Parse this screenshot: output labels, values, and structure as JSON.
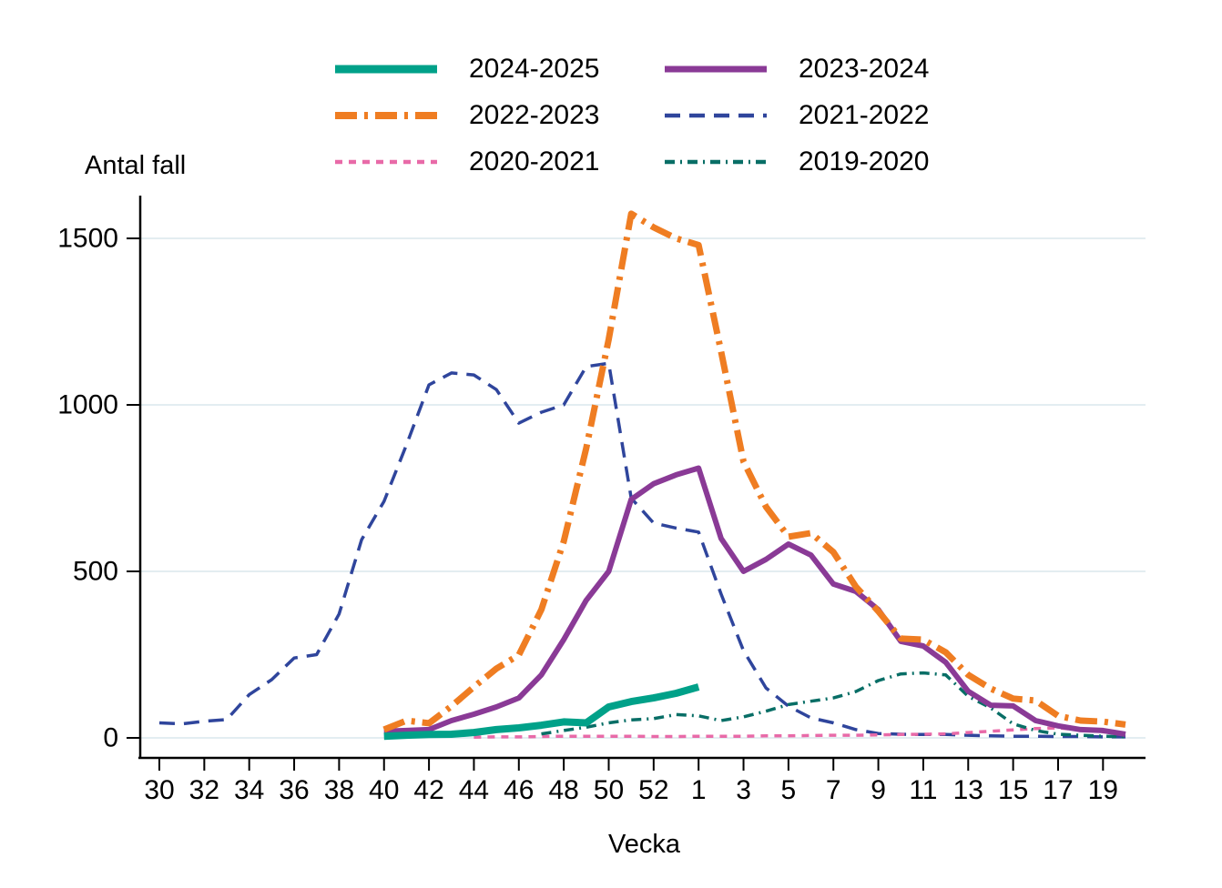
{
  "figure": {
    "y_axis_title": "Antal fall",
    "x_axis_title": "Vecka"
  },
  "legend": {
    "items": [
      {
        "label": "2024-2025"
      },
      {
        "label": "2023-2024"
      },
      {
        "label": "2022-2023"
      },
      {
        "label": "2021-2022"
      },
      {
        "label": "2020-2021"
      },
      {
        "label": "2019-2020"
      }
    ]
  },
  "chart_data": {
    "type": "line",
    "title": "",
    "xlabel": "Vecka",
    "ylabel": "Antal fall",
    "grid": "horizontal-only",
    "gridline_color": "#e3edf1",
    "axis_color": "#000000",
    "ylim": [
      0,
      1600
    ],
    "yticks": [
      0,
      500,
      1000,
      1500
    ],
    "x_positions": [
      "30",
      "31",
      "32",
      "33",
      "34",
      "35",
      "36",
      "37",
      "38",
      "39",
      "40",
      "41",
      "42",
      "43",
      "44",
      "45",
      "46",
      "47",
      "48",
      "49",
      "50",
      "51",
      "52",
      "53",
      "1",
      "2",
      "3",
      "4",
      "5",
      "6",
      "7",
      "8",
      "9",
      "10",
      "11",
      "12",
      "13",
      "14",
      "15",
      "16",
      "17",
      "18",
      "19",
      "20"
    ],
    "xtick_labels": [
      "30",
      "32",
      "34",
      "36",
      "38",
      "40",
      "42",
      "44",
      "46",
      "48",
      "50",
      "52",
      "1",
      "3",
      "5",
      "7",
      "9",
      "11",
      "13",
      "15",
      "17",
      "19"
    ],
    "series": [
      {
        "name": "2021-2022",
        "color": "#2f459c",
        "dash": "17 10",
        "width": 3.5,
        "values": [
          45,
          42,
          50,
          55,
          130,
          175,
          240,
          250,
          372,
          595,
          710,
          880,
          1060,
          1096,
          1090,
          1046,
          945,
          978,
          1000,
          1115,
          1125,
          720,
          645,
          630,
          618,
          432,
          262,
          150,
          95,
          60,
          45,
          25,
          13,
          11,
          10,
          10,
          8,
          6,
          5,
          5,
          4,
          4,
          3,
          3
        ]
      },
      {
        "name": "2020-2021",
        "color": "#e86aa8",
        "dash": "8 7",
        "width": 3.5,
        "values": [
          null,
          null,
          null,
          null,
          null,
          null,
          null,
          null,
          null,
          null,
          null,
          null,
          null,
          null,
          2,
          3,
          3,
          4,
          5,
          5,
          5,
          5,
          4,
          4,
          5,
          5,
          5,
          6,
          6,
          7,
          8,
          8,
          9,
          10,
          11,
          12,
          16,
          20,
          24,
          28,
          30,
          24,
          18,
          15
        ]
      },
      {
        "name": "2019-2020",
        "color": "#086e66",
        "dash": "11 6 2 6",
        "width": 3.5,
        "values": [
          null,
          null,
          null,
          null,
          null,
          null,
          null,
          null,
          null,
          null,
          null,
          null,
          null,
          null,
          null,
          null,
          null,
          12,
          22,
          32,
          45,
          54,
          58,
          70,
          66,
          52,
          63,
          80,
          100,
          110,
          120,
          139,
          172,
          192,
          195,
          189,
          125,
          90,
          42,
          22,
          11,
          8,
          5,
          3
        ]
      },
      {
        "name": "2023-2024",
        "color": "#8a3a96",
        "dash": "",
        "width": 6,
        "values": [
          null,
          null,
          null,
          null,
          null,
          null,
          null,
          null,
          null,
          null,
          20,
          22,
          25,
          52,
          71,
          93,
          120,
          189,
          295,
          413,
          500,
          716,
          763,
          790,
          810,
          599,
          500,
          536,
          582,
          549,
          462,
          440,
          385,
          290,
          276,
          227,
          140,
          98,
          96,
          52,
          36,
          25,
          22,
          11
        ]
      },
      {
        "name": "2022-2023",
        "color": "#ef7d22",
        "dash": "24 8 4 8",
        "width": 7,
        "values": [
          null,
          null,
          null,
          null,
          null,
          null,
          null,
          null,
          null,
          null,
          25,
          52,
          44,
          95,
          153,
          208,
          249,
          385,
          590,
          870,
          1197,
          1574,
          1533,
          1500,
          1480,
          1160,
          830,
          694,
          604,
          615,
          558,
          454,
          380,
          298,
          295,
          257,
          189,
          148,
          118,
          112,
          66,
          52,
          49,
          40
        ]
      },
      {
        "name": "2024-2025",
        "color": "#00a189",
        "dash": "",
        "width": 8,
        "values": [
          null,
          null,
          null,
          null,
          null,
          null,
          null,
          null,
          null,
          null,
          5,
          8,
          10,
          11,
          16,
          25,
          30,
          38,
          48,
          45,
          93,
          109,
          120,
          134,
          153,
          null,
          null,
          null,
          null,
          null,
          null,
          null,
          null,
          null,
          null,
          null,
          null,
          null,
          null,
          null,
          null,
          null,
          null,
          null
        ]
      }
    ]
  }
}
